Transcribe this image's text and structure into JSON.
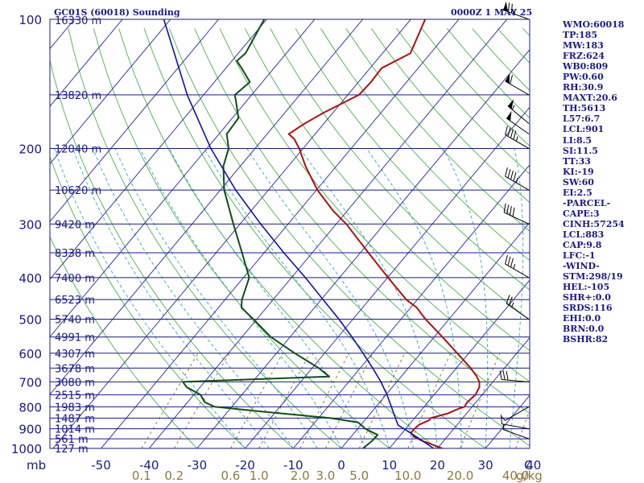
{
  "header": {
    "station": "GC01S (60018) Sounding",
    "time": "0000Z  1 MAY 25"
  },
  "indices": [
    "WMO:60018",
    "TP:185",
    "MW:183",
    "FRZ:624",
    "WB0:809",
    "PW:0.60",
    "RH:30.9",
    "MAXT:20.6",
    "TH:5613",
    "L57:6.7",
    "LCL:901",
    "LI:8.5",
    "SI:11.5",
    "TT:33",
    "KI:-19",
    "SW:60",
    "EI:2.5",
    "-PARCEL-",
    "CAPE:3",
    "CINH:57254",
    "LCL:883",
    "CAP:9.8",
    "LFC:-1",
    "-WIND-",
    "STM:298/19",
    "HEL:-105",
    "SHR+:0.0",
    "SRDS:116",
    "EHI:0.0",
    "BRN:0.0",
    "BSHR:82"
  ],
  "colors": {
    "isobar": "#1a1a8c",
    "isotherm": "#3a3aa0",
    "dry_adiabat": "#5ab95a",
    "moist_adiabat": "#45b0c8",
    "mixing_ratio": "#8c7a3c",
    "temperature": "#b01010",
    "dewpoint": "#0f4f16",
    "parcel": "#1010b0",
    "ytick": "#1a1a8c",
    "xtick": "#1a1a8c",
    "mixing_label": "#8c7a3c",
    "barb": "#000000"
  },
  "chart_data": {
    "type": "skew-t",
    "ylabel": "mb",
    "xlabel": "C",
    "mixing_unit": "g/kg",
    "pressure_ticks": [
      100,
      200,
      300,
      400,
      500,
      600,
      700,
      800,
      900,
      1000
    ],
    "pressure_tick_labels": [
      "100",
      "200",
      "300",
      "400",
      "500",
      "600",
      "700",
      "800",
      "900",
      "1000"
    ],
    "temp_ticks": [
      -50,
      -40,
      -30,
      -20,
      -10,
      0,
      10,
      20,
      30,
      40
    ],
    "temp_tick_labels": [
      "-50",
      "-40",
      "-30",
      "-20",
      "-10",
      "0",
      "10",
      "20",
      "30",
      "40"
    ],
    "mixing_ratio_labels": [
      "0.1",
      "0.2",
      "0.6",
      "1.0",
      "2.0",
      "3.0",
      "5.0",
      "10.0",
      "20.0",
      "40.0"
    ],
    "mixing_ratio_values": [
      0.1,
      0.2,
      0.6,
      1.0,
      2.0,
      3.0,
      5.0,
      10.0,
      20.0,
      40.0
    ],
    "height_labels": [
      {
        "p": 150,
        "label": "13820 m"
      },
      {
        "p": 200,
        "label": "12040 m"
      },
      {
        "p": 250,
        "label": "10620 m"
      },
      {
        "p": 300,
        "label": "9420 m"
      },
      {
        "p": 350,
        "label": "8338 m"
      },
      {
        "p": 400,
        "label": "7400 m"
      },
      {
        "p": 450,
        "label": "6523 m"
      },
      {
        "p": 500,
        "label": "5740 m"
      },
      {
        "p": 550,
        "label": "4991 m"
      },
      {
        "p": 600,
        "label": "4307 m"
      },
      {
        "p": 650,
        "label": "3678 m"
      },
      {
        "p": 700,
        "label": "3080 m"
      },
      {
        "p": 750,
        "label": "2515 m"
      },
      {
        "p": 800,
        "label": "1983 m"
      },
      {
        "p": 850,
        "label": "1487 m"
      },
      {
        "p": 900,
        "label": "1014 m"
      },
      {
        "p": 950,
        "label": "561 m"
      },
      {
        "p": 1000,
        "label": "127 m"
      }
    ],
    "top_height_label": "16330 m",
    "series": [
      {
        "key": "temperature",
        "points": [
          [
            1000,
            21.0
          ],
          [
            985,
            19.0
          ],
          [
            960,
            15.5
          ],
          [
            940,
            13.2
          ],
          [
            920,
            11.8
          ],
          [
            900,
            11.8
          ],
          [
            880,
            12.1
          ],
          [
            860,
            13.4
          ],
          [
            850,
            13.3
          ],
          [
            830,
            16.0
          ],
          [
            810,
            17.4
          ],
          [
            800,
            18.4
          ],
          [
            780,
            18.2
          ],
          [
            750,
            18.6
          ],
          [
            720,
            18.1
          ],
          [
            700,
            17.2
          ],
          [
            680,
            15.7
          ],
          [
            650,
            13.0
          ],
          [
            600,
            7.6
          ],
          [
            550,
            1.7
          ],
          [
            500,
            -4.9
          ],
          [
            470,
            -8.7
          ],
          [
            450,
            -12.3
          ],
          [
            400,
            -19.9
          ],
          [
            350,
            -28.3
          ],
          [
            300,
            -37.9
          ],
          [
            280,
            -42.8
          ],
          [
            250,
            -49.8
          ],
          [
            220,
            -56.4
          ],
          [
            200,
            -60.8
          ],
          [
            190,
            -63.5
          ],
          [
            185,
            -65.5
          ],
          [
            175,
            -64.0
          ],
          [
            165,
            -61.9
          ],
          [
            150,
            -57.7
          ],
          [
            140,
            -57.4
          ],
          [
            130,
            -57.6
          ],
          [
            120,
            -54.2
          ],
          [
            100,
            -57.0
          ]
        ]
      },
      {
        "key": "dewpoint",
        "points": [
          [
            1000,
            4.5
          ],
          [
            960,
            5.1
          ],
          [
            930,
            5.2
          ],
          [
            900,
            1.6
          ],
          [
            870,
            -1.0
          ],
          [
            850,
            -7.5
          ],
          [
            820,
            -23.2
          ],
          [
            800,
            -33.6
          ],
          [
            780,
            -36.5
          ],
          [
            750,
            -38.6
          ],
          [
            720,
            -42.8
          ],
          [
            700,
            -44.5
          ],
          [
            680,
            -15.0
          ],
          [
            650,
            -18.6
          ],
          [
            600,
            -26.2
          ],
          [
            550,
            -34.0
          ],
          [
            500,
            -40.7
          ],
          [
            470,
            -45.2
          ],
          [
            450,
            -46.5
          ],
          [
            400,
            -48.8
          ],
          [
            350,
            -54.6
          ],
          [
            300,
            -61.4
          ],
          [
            250,
            -69.2
          ],
          [
            220,
            -73.5
          ],
          [
            200,
            -75.5
          ],
          [
            185,
            -78.4
          ],
          [
            170,
            -78.7
          ],
          [
            160,
            -81.0
          ],
          [
            150,
            -83.5
          ],
          [
            140,
            -82.6
          ],
          [
            130,
            -86.7
          ],
          [
            125,
            -89.0
          ],
          [
            120,
            -88.5
          ],
          [
            100,
            -90.5
          ]
        ]
      },
      {
        "key": "parcel",
        "points": [
          [
            1000,
            19.2
          ],
          [
            950,
            14.6
          ],
          [
            900,
            9.6
          ],
          [
            883,
            7.8
          ],
          [
            850,
            6.0
          ],
          [
            800,
            3.2
          ],
          [
            750,
            0.2
          ],
          [
            700,
            -3.3
          ],
          [
            650,
            -7.4
          ],
          [
            600,
            -12.0
          ],
          [
            550,
            -17.1
          ],
          [
            500,
            -22.9
          ],
          [
            450,
            -29.6
          ],
          [
            400,
            -37.1
          ],
          [
            350,
            -45.9
          ],
          [
            300,
            -55.7
          ],
          [
            250,
            -66.8
          ],
          [
            200,
            -79.2
          ],
          [
            150,
            -93.4
          ],
          [
            100,
            -111.4
          ]
        ]
      }
    ],
    "wind_barbs": [
      {
        "p": 100,
        "dir": 290,
        "spd": 75
      },
      {
        "p": 150,
        "dir": 300,
        "spd": 60
      },
      {
        "p": 175,
        "dir": 310,
        "spd": 55
      },
      {
        "p": 185,
        "dir": 305,
        "spd": 50
      },
      {
        "p": 200,
        "dir": 300,
        "spd": 45
      },
      {
        "p": 250,
        "dir": 300,
        "spd": 45
      },
      {
        "p": 300,
        "dir": 295,
        "spd": 40
      },
      {
        "p": 400,
        "dir": 300,
        "spd": 35
      },
      {
        "p": 500,
        "dir": 305,
        "spd": 25
      },
      {
        "p": 700,
        "dir": 275,
        "spd": 30
      },
      {
        "p": 800,
        "dir": 240,
        "spd": 5
      },
      {
        "p": 900,
        "dir": 280,
        "spd": 10
      },
      {
        "p": 950,
        "dir": 290,
        "spd": 5
      }
    ]
  }
}
